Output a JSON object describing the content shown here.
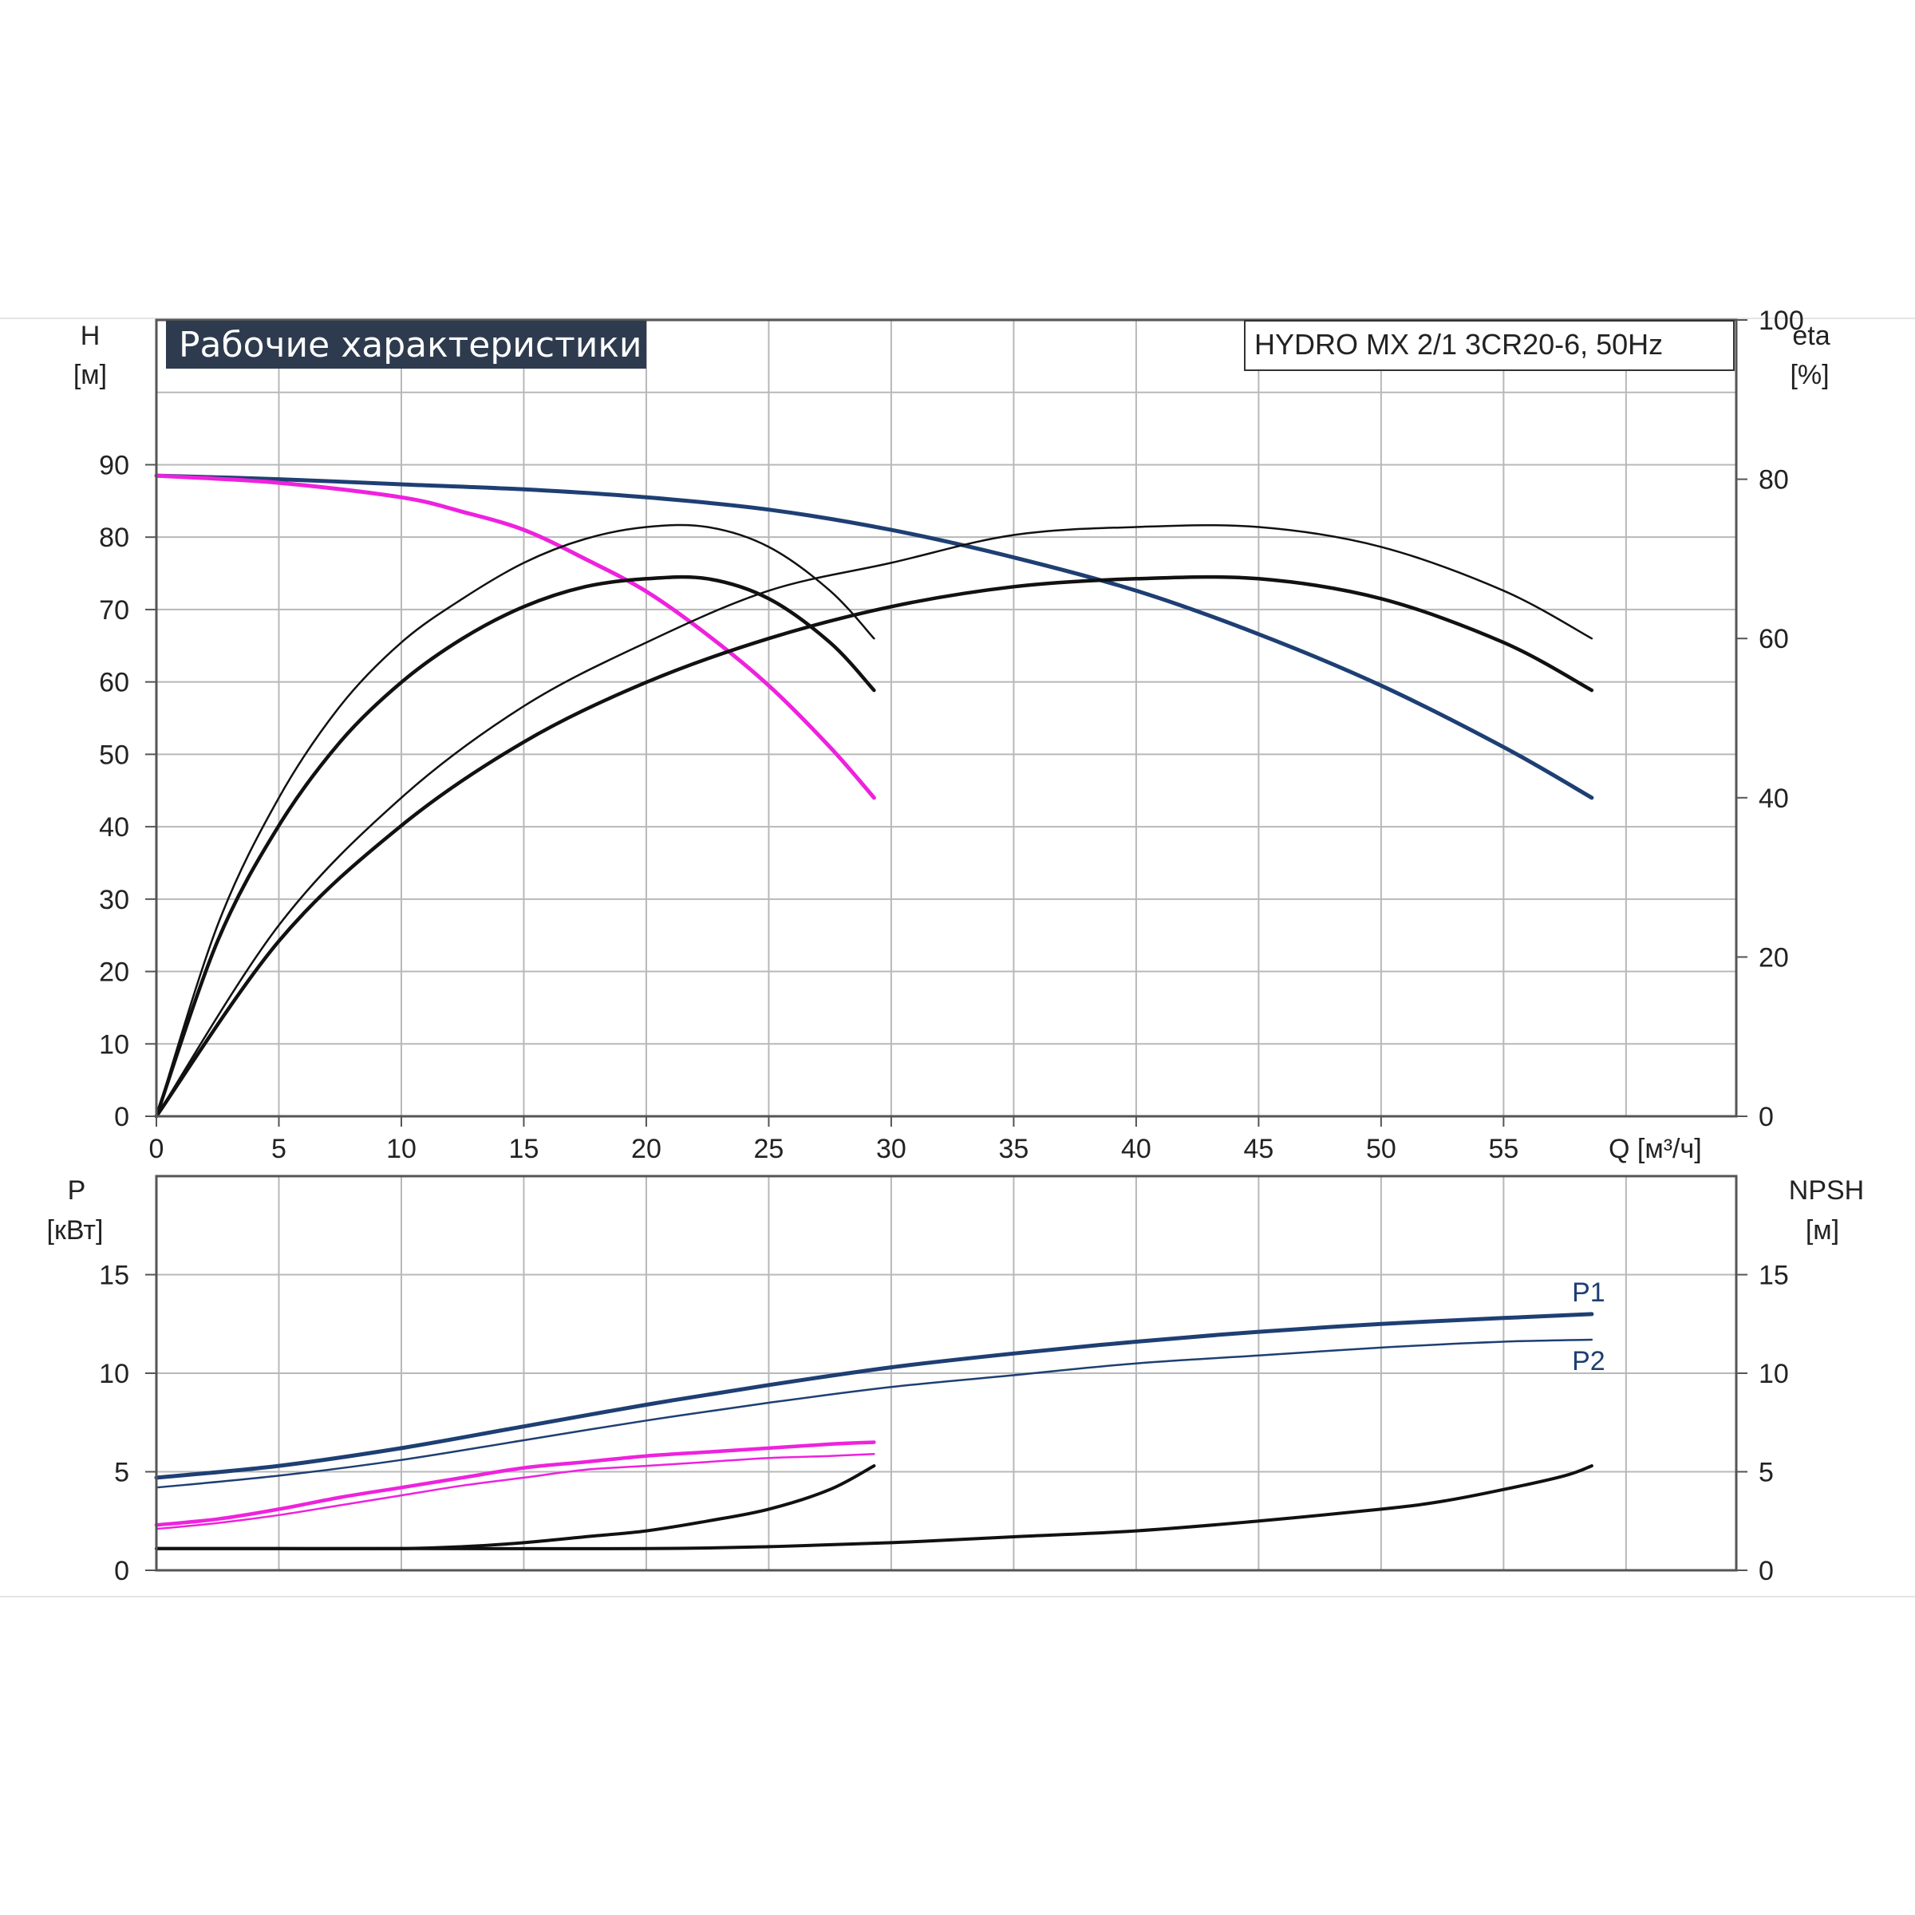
{
  "title": "Рабочие характеристики",
  "model": "HYDRO MX 2/1 3CR20-6, 50Hz",
  "colors": {
    "dark_blue": "#1e3f73",
    "magenta": "#ee22dd",
    "black": "#111111",
    "title_bg": "#2e3b4e"
  },
  "chart_data": [
    {
      "id": "performance",
      "type": "line",
      "xlabel": "Q [м³/ч]",
      "ylabel_left": "H\n[м]",
      "ylabel_right": "eta\n[%]",
      "xlim": [
        0,
        64.5
      ],
      "ylim_left": [
        0,
        110
      ],
      "ylim_right": [
        0,
        100
      ],
      "x_ticks": [
        0,
        5,
        10,
        15,
        20,
        25,
        30,
        35,
        40,
        45,
        50,
        55
      ],
      "y_ticks_left": [
        0,
        10,
        20,
        30,
        40,
        50,
        60,
        70,
        80,
        90
      ],
      "y_ticks_right": [
        0,
        20,
        40,
        60,
        80,
        100
      ],
      "grid": true,
      "series": [
        {
          "axis": "left",
          "color": "dark_blue",
          "width": 5,
          "x": [
            0,
            5,
            10,
            15,
            20,
            25,
            30,
            35,
            40,
            45,
            50,
            55,
            58.6
          ],
          "y": [
            88.5,
            88,
            87.3,
            86.6,
            85.5,
            83.8,
            81,
            77.2,
            72.6,
            66.6,
            59.5,
            51,
            44
          ]
        },
        {
          "axis": "left",
          "color": "magenta",
          "width": 5,
          "x": [
            0,
            5,
            10,
            12.5,
            15,
            17.5,
            20,
            22.5,
            25,
            27.5,
            29.3
          ],
          "y": [
            88.5,
            87.5,
            85.5,
            83.5,
            81,
            77,
            72.5,
            66.5,
            59.5,
            51,
            44
          ]
        },
        {
          "axis": "right",
          "color": "black",
          "width": 2.5,
          "x": [
            0,
            2.5,
            5,
            7.5,
            10,
            12.5,
            15,
            17.5,
            20,
            22.5,
            25,
            27.5,
            29.3
          ],
          "y": [
            0,
            24,
            40,
            51.5,
            59.5,
            65,
            69.5,
            72.5,
            74,
            74,
            71.5,
            66,
            60
          ]
        },
        {
          "axis": "right",
          "color": "black",
          "width": 4.5,
          "x": [
            0,
            2.5,
            5,
            7.5,
            10,
            12.5,
            15,
            17.5,
            20,
            22.5,
            25,
            27.5,
            29.3
          ],
          "y": [
            0,
            22,
            36.5,
            47,
            54.5,
            60,
            64,
            66.5,
            67.5,
            67.5,
            65,
            59.5,
            53.5
          ]
        },
        {
          "axis": "right",
          "color": "black",
          "width": 2.5,
          "x": [
            0,
            5,
            10,
            15,
            20,
            25,
            30,
            35,
            40,
            45,
            50,
            55,
            58.6
          ],
          "y": [
            0,
            24,
            40,
            51.5,
            59.5,
            66,
            69.5,
            73,
            74,
            74,
            71.5,
            66,
            60
          ]
        },
        {
          "axis": "right",
          "color": "black",
          "width": 4.5,
          "x": [
            0,
            5,
            10,
            15,
            20,
            25,
            30,
            35,
            40,
            45,
            50,
            55,
            58.6
          ],
          "y": [
            0,
            22,
            36.5,
            47,
            54.5,
            60,
            64,
            66.5,
            67.5,
            67.5,
            65,
            59.5,
            53.5
          ]
        }
      ]
    },
    {
      "id": "power-npsh",
      "type": "line",
      "xlim": [
        0,
        64.5
      ],
      "ylabel_left": "P\n[кВт]",
      "ylabel_right": "NPSH\n[м]",
      "ylim_left": [
        0,
        20
      ],
      "ylim_right": [
        0,
        20
      ],
      "y_ticks_left": [
        0,
        5,
        10,
        15
      ],
      "y_ticks_right": [
        0,
        5,
        10,
        15
      ],
      "grid": true,
      "series": [
        {
          "name": "P1",
          "axis": "left",
          "color": "dark_blue",
          "width": 5,
          "x": [
            0,
            5,
            10,
            15,
            20,
            25,
            30,
            35,
            40,
            45,
            50,
            55,
            58.6
          ],
          "y": [
            4.7,
            5.3,
            6.2,
            7.3,
            8.4,
            9.4,
            10.3,
            11.0,
            11.6,
            12.1,
            12.5,
            12.8,
            13.0
          ]
        },
        {
          "name": "P2",
          "axis": "left",
          "color": "dark_blue",
          "width": 2.5,
          "x": [
            0,
            5,
            10,
            15,
            20,
            25,
            30,
            35,
            40,
            45,
            50,
            55,
            58.6
          ],
          "y": [
            4.2,
            4.8,
            5.6,
            6.6,
            7.6,
            8.5,
            9.3,
            9.9,
            10.5,
            10.9,
            11.3,
            11.6,
            11.7
          ]
        },
        {
          "axis": "left",
          "color": "magenta",
          "width": 4.5,
          "x": [
            0,
            2.5,
            5,
            7.5,
            10,
            12.5,
            15,
            17.5,
            20,
            22.5,
            25,
            27.5,
            29.3
          ],
          "y": [
            2.3,
            2.6,
            3.1,
            3.7,
            4.2,
            4.7,
            5.2,
            5.5,
            5.8,
            6.0,
            6.2,
            6.4,
            6.5
          ]
        },
        {
          "axis": "left",
          "color": "magenta",
          "width": 2.5,
          "x": [
            0,
            2.5,
            5,
            7.5,
            10,
            12.5,
            15,
            17.5,
            20,
            22.5,
            25,
            27.5,
            29.3
          ],
          "y": [
            2.1,
            2.4,
            2.8,
            3.3,
            3.8,
            4.3,
            4.7,
            5.1,
            5.3,
            5.5,
            5.7,
            5.8,
            5.9
          ]
        },
        {
          "axis": "right",
          "color": "black",
          "width": 4,
          "x": [
            0,
            5,
            10,
            12.5,
            15,
            17.5,
            20,
            22.5,
            25,
            27.5,
            29.3
          ],
          "y": [
            1.1,
            1.1,
            1.1,
            1.2,
            1.4,
            1.7,
            2.0,
            2.5,
            3.1,
            4.1,
            5.3
          ]
        },
        {
          "axis": "right",
          "color": "black",
          "width": 4,
          "x": [
            0,
            10,
            20,
            25,
            30,
            35,
            40,
            45,
            50,
            52.5,
            55,
            57.5,
            58.6
          ],
          "y": [
            1.1,
            1.1,
            1.1,
            1.2,
            1.4,
            1.7,
            2.0,
            2.5,
            3.1,
            3.5,
            4.1,
            4.8,
            5.3
          ]
        }
      ]
    }
  ]
}
